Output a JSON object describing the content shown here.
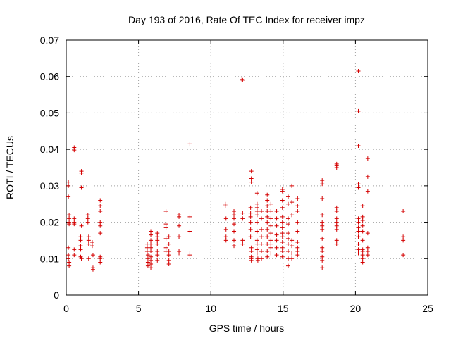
{
  "chart_data": {
    "type": "scatter",
    "title": "Day 193 of 2016, Rate Of TEC Index for receiver impz",
    "xlabel": "GPS time / hours",
    "ylabel": "ROTI / TECUs",
    "xlim": [
      0,
      25
    ],
    "ylim": [
      0,
      0.07
    ],
    "xticks": [
      "0",
      "5",
      "10",
      "15",
      "20",
      "25"
    ],
    "yticks": [
      "0",
      "0.01",
      "0.02",
      "0.03",
      "0.04",
      "0.05",
      "0.06",
      "0.07"
    ],
    "grid": true,
    "marker": "+",
    "color": "#d40000",
    "series": [
      {
        "name": "ROTI",
        "points": [
          [
            0.15,
            0.031
          ],
          [
            0.15,
            0.03
          ],
          [
            0.15,
            0.027
          ],
          [
            0.2,
            0.022
          ],
          [
            0.2,
            0.021
          ],
          [
            0.2,
            0.02
          ],
          [
            0.2,
            0.0195
          ],
          [
            0.15,
            0.013
          ],
          [
            0.15,
            0.011
          ],
          [
            0.15,
            0.01
          ],
          [
            0.2,
            0.009
          ],
          [
            0.2,
            0.008
          ],
          [
            0.55,
            0.0405
          ],
          [
            0.55,
            0.0398
          ],
          [
            0.55,
            0.021
          ],
          [
            0.55,
            0.02
          ],
          [
            0.55,
            0.0195
          ],
          [
            0.55,
            0.0125
          ],
          [
            0.55,
            0.011
          ],
          [
            1.05,
            0.034
          ],
          [
            1.05,
            0.0335
          ],
          [
            1.05,
            0.0295
          ],
          [
            1.05,
            0.019
          ],
          [
            1.0,
            0.016
          ],
          [
            1.0,
            0.015
          ],
          [
            1.0,
            0.0135
          ],
          [
            1.0,
            0.0125
          ],
          [
            1.0,
            0.0105
          ],
          [
            1.05,
            0.01
          ],
          [
            1.5,
            0.022
          ],
          [
            1.5,
            0.021
          ],
          [
            1.5,
            0.02
          ],
          [
            1.55,
            0.016
          ],
          [
            1.55,
            0.015
          ],
          [
            1.55,
            0.014
          ],
          [
            1.55,
            0.01
          ],
          [
            1.8,
            0.0145
          ],
          [
            1.8,
            0.0135
          ],
          [
            1.85,
            0.011
          ],
          [
            1.85,
            0.0075
          ],
          [
            1.85,
            0.007
          ],
          [
            2.35,
            0.026
          ],
          [
            2.35,
            0.0245
          ],
          [
            2.35,
            0.023
          ],
          [
            2.35,
            0.02
          ],
          [
            2.35,
            0.019
          ],
          [
            2.35,
            0.017
          ],
          [
            2.35,
            0.0105
          ],
          [
            2.35,
            0.01
          ],
          [
            2.35,
            0.009
          ],
          [
            5.6,
            0.014
          ],
          [
            5.6,
            0.013
          ],
          [
            5.6,
            0.012
          ],
          [
            5.65,
            0.011
          ],
          [
            5.65,
            0.01
          ],
          [
            5.65,
            0.009
          ],
          [
            5.65,
            0.008
          ],
          [
            5.85,
            0.0175
          ],
          [
            5.85,
            0.0165
          ],
          [
            5.85,
            0.015
          ],
          [
            5.85,
            0.014
          ],
          [
            5.85,
            0.013
          ],
          [
            5.85,
            0.012
          ],
          [
            5.85,
            0.0105
          ],
          [
            5.85,
            0.0095
          ],
          [
            5.85,
            0.0085
          ],
          [
            5.85,
            0.0075
          ],
          [
            6.3,
            0.017
          ],
          [
            6.3,
            0.016
          ],
          [
            6.3,
            0.015
          ],
          [
            6.3,
            0.014
          ],
          [
            6.3,
            0.012
          ],
          [
            6.3,
            0.011
          ],
          [
            6.3,
            0.0095
          ],
          [
            6.9,
            0.023
          ],
          [
            6.9,
            0.0195
          ],
          [
            6.9,
            0.0185
          ],
          [
            6.9,
            0.0155
          ],
          [
            6.9,
            0.013
          ],
          [
            6.9,
            0.012
          ],
          [
            7.1,
            0.016
          ],
          [
            7.1,
            0.014
          ],
          [
            7.1,
            0.012
          ],
          [
            7.1,
            0.011
          ],
          [
            7.1,
            0.0095
          ],
          [
            7.1,
            0.0085
          ],
          [
            7.8,
            0.022
          ],
          [
            7.8,
            0.0215
          ],
          [
            7.8,
            0.019
          ],
          [
            7.8,
            0.016
          ],
          [
            7.8,
            0.012
          ],
          [
            7.8,
            0.0115
          ],
          [
            8.55,
            0.0415
          ],
          [
            8.55,
            0.0215
          ],
          [
            8.55,
            0.0175
          ],
          [
            8.55,
            0.0115
          ],
          [
            8.55,
            0.011
          ],
          [
            11.0,
            0.025
          ],
          [
            11.0,
            0.0245
          ],
          [
            11.05,
            0.021
          ],
          [
            11.05,
            0.018
          ],
          [
            11.05,
            0.016
          ],
          [
            11.05,
            0.015
          ],
          [
            11.6,
            0.023
          ],
          [
            11.6,
            0.022
          ],
          [
            11.6,
            0.021
          ],
          [
            11.6,
            0.0195
          ],
          [
            11.6,
            0.0175
          ],
          [
            11.6,
            0.015
          ],
          [
            11.6,
            0.0135
          ],
          [
            12.15,
            0.0592
          ],
          [
            12.2,
            0.059
          ],
          [
            12.2,
            0.0225
          ],
          [
            12.2,
            0.021
          ],
          [
            12.2,
            0.015
          ],
          [
            12.2,
            0.014
          ],
          [
            12.8,
            0.034
          ],
          [
            12.8,
            0.032
          ],
          [
            12.8,
            0.031
          ],
          [
            12.75,
            0.024
          ],
          [
            12.75,
            0.0225
          ],
          [
            12.75,
            0.0215
          ],
          [
            12.75,
            0.02
          ],
          [
            12.75,
            0.018
          ],
          [
            12.75,
            0.016
          ],
          [
            12.8,
            0.013
          ],
          [
            12.8,
            0.012
          ],
          [
            12.8,
            0.0105
          ],
          [
            12.8,
            0.01
          ],
          [
            12.8,
            0.0095
          ],
          [
            13.2,
            0.028
          ],
          [
            13.2,
            0.025
          ],
          [
            13.2,
            0.024
          ],
          [
            13.2,
            0.023
          ],
          [
            13.2,
            0.022
          ],
          [
            13.2,
            0.02
          ],
          [
            13.2,
            0.0175
          ],
          [
            13.2,
            0.015
          ],
          [
            13.2,
            0.014
          ],
          [
            13.2,
            0.0125
          ],
          [
            13.2,
            0.0115
          ],
          [
            13.25,
            0.01
          ],
          [
            13.25,
            0.0095
          ],
          [
            13.5,
            0.023
          ],
          [
            13.5,
            0.021
          ],
          [
            13.5,
            0.018
          ],
          [
            13.5,
            0.016
          ],
          [
            13.5,
            0.014
          ],
          [
            13.5,
            0.012
          ],
          [
            13.5,
            0.01
          ],
          [
            13.9,
            0.0275
          ],
          [
            13.9,
            0.026
          ],
          [
            13.9,
            0.0245
          ],
          [
            13.9,
            0.023
          ],
          [
            13.9,
            0.0215
          ],
          [
            13.9,
            0.02
          ],
          [
            13.9,
            0.018
          ],
          [
            13.9,
            0.016
          ],
          [
            13.9,
            0.014
          ],
          [
            13.9,
            0.012
          ],
          [
            13.9,
            0.0105
          ],
          [
            14.15,
            0.025
          ],
          [
            14.15,
            0.023
          ],
          [
            14.15,
            0.021
          ],
          [
            14.15,
            0.019
          ],
          [
            14.15,
            0.017
          ],
          [
            14.15,
            0.015
          ],
          [
            14.15,
            0.014
          ],
          [
            14.15,
            0.013
          ],
          [
            14.15,
            0.0115
          ],
          [
            14.55,
            0.023
          ],
          [
            14.55,
            0.021
          ],
          [
            14.55,
            0.019
          ],
          [
            14.55,
            0.0165
          ],
          [
            14.55,
            0.015
          ],
          [
            14.55,
            0.013
          ],
          [
            14.55,
            0.011
          ],
          [
            14.95,
            0.029
          ],
          [
            14.95,
            0.0285
          ],
          [
            14.95,
            0.026
          ],
          [
            14.95,
            0.024
          ],
          [
            14.95,
            0.0215
          ],
          [
            14.95,
            0.02
          ],
          [
            14.95,
            0.0185
          ],
          [
            14.95,
            0.017
          ],
          [
            14.95,
            0.016
          ],
          [
            14.95,
            0.0145
          ],
          [
            14.95,
            0.013
          ],
          [
            14.95,
            0.012
          ],
          [
            14.95,
            0.0105
          ],
          [
            15.35,
            0.027
          ],
          [
            15.35,
            0.025
          ],
          [
            15.35,
            0.021
          ],
          [
            15.35,
            0.0195
          ],
          [
            15.35,
            0.017
          ],
          [
            15.35,
            0.0155
          ],
          [
            15.35,
            0.014
          ],
          [
            15.35,
            0.012
          ],
          [
            15.35,
            0.01
          ],
          [
            15.35,
            0.008
          ],
          [
            15.6,
            0.03
          ],
          [
            15.6,
            0.0255
          ],
          [
            15.6,
            0.022
          ],
          [
            15.6,
            0.015
          ],
          [
            15.6,
            0.0135
          ],
          [
            15.6,
            0.0115
          ],
          [
            15.6,
            0.01
          ],
          [
            16.0,
            0.0265
          ],
          [
            16.0,
            0.0245
          ],
          [
            16.0,
            0.023
          ],
          [
            16.0,
            0.02
          ],
          [
            16.0,
            0.0175
          ],
          [
            16.0,
            0.0145
          ],
          [
            16.0,
            0.013
          ],
          [
            16.0,
            0.012
          ],
          [
            16.0,
            0.011
          ],
          [
            17.7,
            0.0315
          ],
          [
            17.7,
            0.0305
          ],
          [
            17.7,
            0.0265
          ],
          [
            17.7,
            0.022
          ],
          [
            17.7,
            0.02
          ],
          [
            17.7,
            0.019
          ],
          [
            17.7,
            0.018
          ],
          [
            17.7,
            0.0155
          ],
          [
            17.7,
            0.013
          ],
          [
            17.7,
            0.012
          ],
          [
            17.7,
            0.0105
          ],
          [
            17.7,
            0.0095
          ],
          [
            17.7,
            0.0075
          ],
          [
            18.7,
            0.036
          ],
          [
            18.7,
            0.0355
          ],
          [
            18.7,
            0.035
          ],
          [
            18.7,
            0.024
          ],
          [
            18.7,
            0.023
          ],
          [
            18.7,
            0.021
          ],
          [
            18.7,
            0.02
          ],
          [
            18.7,
            0.019
          ],
          [
            18.7,
            0.018
          ],
          [
            18.7,
            0.015
          ],
          [
            18.7,
            0.014
          ],
          [
            20.2,
            0.0615
          ],
          [
            20.2,
            0.0505
          ],
          [
            20.2,
            0.041
          ],
          [
            20.2,
            0.0305
          ],
          [
            20.2,
            0.0295
          ],
          [
            20.2,
            0.021
          ],
          [
            20.2,
            0.02
          ],
          [
            20.2,
            0.0185
          ],
          [
            20.2,
            0.0175
          ],
          [
            20.2,
            0.016
          ],
          [
            20.2,
            0.014
          ],
          [
            20.2,
            0.0125
          ],
          [
            20.2,
            0.0115
          ],
          [
            20.5,
            0.0245
          ],
          [
            20.5,
            0.0215
          ],
          [
            20.5,
            0.0205
          ],
          [
            20.5,
            0.019
          ],
          [
            20.5,
            0.0175
          ],
          [
            20.5,
            0.015
          ],
          [
            20.5,
            0.0125
          ],
          [
            20.5,
            0.012
          ],
          [
            20.5,
            0.011
          ],
          [
            20.5,
            0.01
          ],
          [
            20.5,
            0.009
          ],
          [
            20.85,
            0.0375
          ],
          [
            20.85,
            0.0325
          ],
          [
            20.85,
            0.0285
          ],
          [
            20.85,
            0.017
          ],
          [
            20.85,
            0.013
          ],
          [
            20.85,
            0.012
          ],
          [
            20.85,
            0.011
          ],
          [
            23.3,
            0.023
          ],
          [
            23.3,
            0.016
          ],
          [
            23.3,
            0.015
          ],
          [
            23.3,
            0.011
          ]
        ]
      }
    ]
  }
}
